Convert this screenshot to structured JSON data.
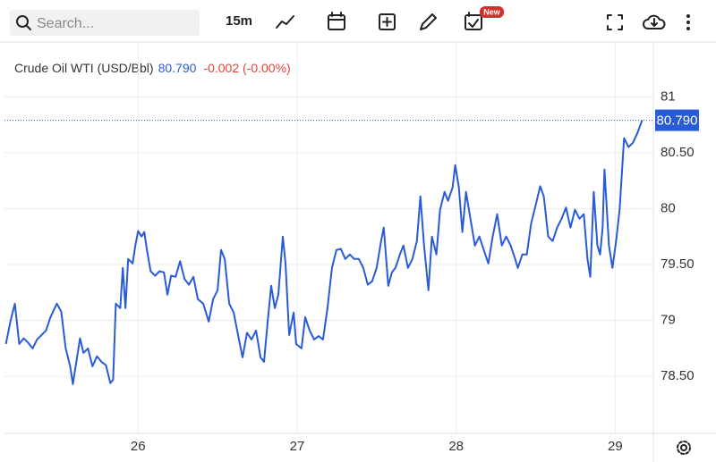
{
  "toolbar": {
    "search_placeholder": "Search...",
    "interval": "15m",
    "badge": "New"
  },
  "chart_data": {
    "type": "line",
    "change": "-0.002 (-0.00%)",
    "price": {
      "value": 80.79,
      "label": "80.790"
    },
    "xlim": [
      25.16,
      29.24
    ],
    "xticks": [
      26,
      27,
      28,
      29
    ],
    "ylim": [
      77.99,
      81.49
    ],
    "yticks": [
      81,
      {
        "value": 80.5,
        "label": "80.50"
      },
      80,
      {
        "value": 79.5,
        "label": "79.50"
      },
      79,
      {
        "value": 78.5,
        "label": "78.50"
      }
    ],
    "grid": true,
    "series": [
      {
        "name": "Crude Oil WTI (USD/Bbl)",
        "color": "#2a5bd7",
        "x": [
          25.169,
          25.197,
          25.225,
          25.253,
          25.281,
          25.309,
          25.337,
          25.365,
          25.421,
          25.449,
          25.489,
          25.517,
          25.545,
          25.573,
          25.59,
          25.612,
          25.635,
          25.657,
          25.685,
          25.713,
          25.742,
          25.77,
          25.798,
          25.826,
          25.843,
          25.86,
          25.888,
          25.904,
          25.921,
          25.938,
          25.966,
          25.983,
          26.0,
          26.022,
          26.039,
          26.056,
          26.079,
          26.107,
          26.135,
          26.163,
          26.185,
          26.208,
          26.236,
          26.264,
          26.292,
          26.32,
          26.348,
          26.376,
          26.41,
          26.444,
          26.472,
          26.5,
          26.522,
          26.545,
          26.573,
          26.601,
          26.629,
          26.657,
          26.685,
          26.713,
          26.742,
          26.77,
          26.792,
          26.815,
          26.837,
          26.86,
          26.882,
          26.91,
          26.927,
          26.95,
          26.978,
          26.994,
          27.028,
          27.051,
          27.079,
          27.107,
          27.135,
          27.163,
          27.191,
          27.219,
          27.247,
          27.275,
          27.303,
          27.331,
          27.359,
          27.388,
          27.416,
          27.444,
          27.472,
          27.5,
          27.528,
          27.545,
          27.573,
          27.596,
          27.618,
          27.646,
          27.669,
          27.697,
          27.725,
          27.753,
          27.775,
          27.798,
          27.826,
          27.848,
          27.876,
          27.899,
          27.927,
          27.949,
          27.978,
          27.994,
          28.017,
          28.039,
          28.062,
          28.09,
          28.118,
          28.146,
          28.174,
          28.202,
          28.23,
          28.258,
          28.287,
          28.315,
          28.343,
          28.371,
          28.388,
          28.416,
          28.444,
          28.472,
          28.5,
          28.528,
          28.551,
          28.579,
          28.607,
          28.635,
          28.663,
          28.691,
          28.719,
          28.747,
          28.775,
          28.803,
          28.826,
          28.843,
          28.865,
          28.888,
          28.905,
          28.921,
          28.933,
          28.961,
          28.983,
          29.006,
          29.028,
          29.056,
          29.084,
          29.112,
          29.141,
          29.169
        ],
        "values": [
          78.79,
          78.99,
          79.15,
          78.79,
          78.84,
          78.8,
          78.75,
          78.83,
          78.91,
          79.03,
          79.15,
          79.08,
          78.75,
          78.59,
          78.43,
          78.63,
          78.84,
          78.71,
          78.75,
          78.59,
          78.68,
          78.63,
          78.6,
          78.44,
          78.47,
          79.15,
          79.11,
          79.47,
          79.11,
          79.55,
          79.51,
          79.67,
          79.8,
          79.75,
          79.79,
          79.63,
          79.44,
          79.4,
          79.44,
          79.43,
          79.23,
          79.4,
          79.39,
          79.53,
          79.37,
          79.32,
          79.39,
          79.19,
          79.15,
          78.99,
          79.19,
          79.27,
          79.63,
          79.55,
          79.15,
          79.07,
          78.87,
          78.67,
          78.89,
          78.83,
          78.91,
          78.67,
          78.63,
          78.99,
          79.31,
          79.11,
          79.23,
          79.75,
          79.51,
          78.87,
          79.07,
          78.79,
          78.75,
          79.03,
          78.91,
          78.83,
          78.86,
          78.83,
          79.11,
          79.47,
          79.63,
          79.64,
          79.55,
          79.59,
          79.55,
          79.55,
          79.47,
          79.32,
          79.35,
          79.47,
          79.71,
          79.83,
          79.31,
          79.43,
          79.47,
          79.59,
          79.67,
          79.47,
          79.55,
          79.71,
          80.11,
          79.67,
          79.27,
          79.75,
          79.59,
          79.99,
          80.15,
          80.07,
          80.19,
          80.39,
          80.19,
          79.79,
          80.15,
          79.91,
          79.67,
          79.75,
          79.63,
          79.51,
          79.75,
          79.95,
          79.67,
          79.75,
          79.67,
          79.55,
          79.47,
          79.59,
          79.59,
          79.87,
          80.03,
          80.2,
          80.11,
          79.75,
          79.71,
          79.83,
          79.91,
          80.01,
          79.83,
          79.99,
          79.91,
          79.95,
          79.55,
          79.39,
          80.15,
          79.67,
          79.59,
          79.83,
          80.35,
          79.67,
          79.47,
          79.71,
          79.99,
          80.63,
          80.55,
          80.59,
          80.68,
          80.79
        ]
      }
    ]
  }
}
